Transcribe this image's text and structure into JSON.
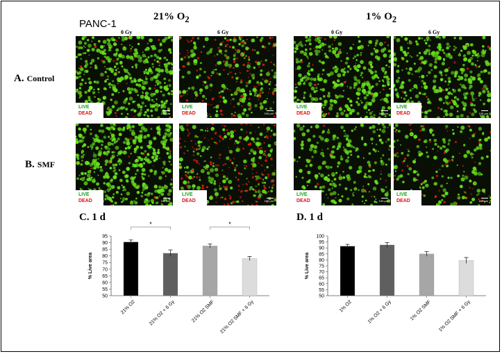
{
  "cell_line": "PANC-1",
  "headers": {
    "normoxia": {
      "main": "21% O",
      "sub": "2"
    },
    "hypoxia": {
      "main": "1% O",
      "sub": "2"
    },
    "dose0": "0 Gy",
    "dose6": "6 Gy"
  },
  "rows": {
    "control": {
      "letter": "A.",
      "name": "Control"
    },
    "smf": {
      "letter": "B.",
      "name": "SMF"
    }
  },
  "micro_legend": {
    "live": "LIVE",
    "dead": "DEAD",
    "scale": "100 µm"
  },
  "panel_images": [
    {
      "id": "ctrl-21-0",
      "dead_fraction": 0.06,
      "density": 0.85
    },
    {
      "id": "ctrl-21-6",
      "dead_fraction": 0.45,
      "density": 0.7
    },
    {
      "id": "ctrl-1-0",
      "dead_fraction": 0.05,
      "density": 0.75
    },
    {
      "id": "ctrl-1-6",
      "dead_fraction": 0.07,
      "density": 0.7
    },
    {
      "id": "smf-21-0",
      "dead_fraction": 0.04,
      "density": 0.95
    },
    {
      "id": "smf-21-6",
      "dead_fraction": 0.5,
      "density": 0.75
    },
    {
      "id": "smf-1-0",
      "dead_fraction": 0.05,
      "density": 0.5
    },
    {
      "id": "smf-1-6",
      "dead_fraction": 0.3,
      "density": 0.45
    }
  ],
  "colors": {
    "live": "#66e01a",
    "dead": "#e01a10",
    "bar_series": [
      "#000000",
      "#5f5f5f",
      "#a6a6a6",
      "#dcdcdc"
    ]
  },
  "chart_data": [
    {
      "type": "bar",
      "title": "C. 1 d",
      "ylabel": "% Live area",
      "categories": [
        "21% O2",
        "21% O2 + 6 Gy",
        "21% O2 SMF",
        "21% O2 SMF + 6 Gy"
      ],
      "values": [
        90.5,
        82.0,
        87.5,
        78.0
      ],
      "errors": [
        1.5,
        2.5,
        1.5,
        1.5
      ],
      "ylim": [
        50,
        95
      ],
      "yticks": [
        50,
        55,
        60,
        65,
        70,
        75,
        80,
        85,
        90,
        95
      ],
      "significance": [
        {
          "from": 0,
          "to": 1,
          "label": "*"
        },
        {
          "from": 2,
          "to": 3,
          "label": "*"
        }
      ],
      "grid": false
    },
    {
      "type": "bar",
      "title": "D. 1 d",
      "ylabel": "% Live area",
      "categories": [
        "1% O2",
        "1% O2 + 6 Gy",
        "1% O2 SMF",
        "1% O2 SMF + 6 Gy"
      ],
      "values": [
        91.5,
        92.5,
        85.0,
        79.5
      ],
      "errors": [
        1.5,
        2.0,
        2.0,
        2.5
      ],
      "ylim": [
        50,
        100
      ],
      "yticks": [
        50,
        55,
        60,
        65,
        70,
        75,
        80,
        85,
        90,
        95,
        100
      ],
      "significance": [],
      "grid": false
    }
  ]
}
